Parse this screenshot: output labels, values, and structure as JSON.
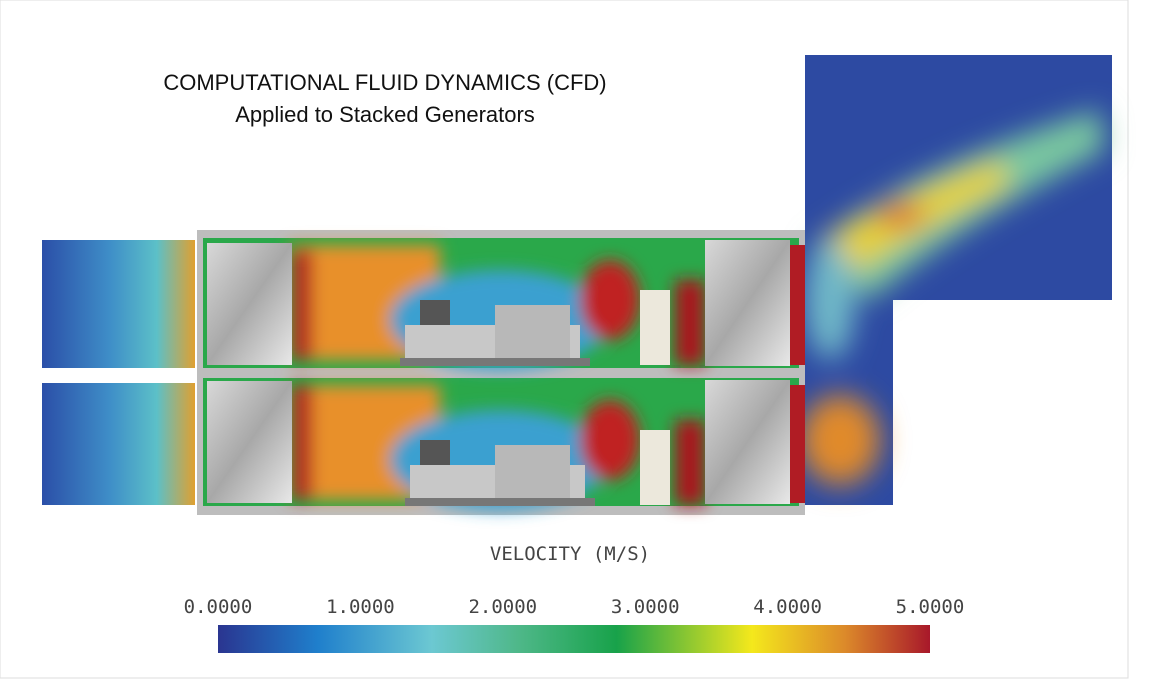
{
  "header": {
    "title": "COMPUTATIONAL FLUID DYNAMICS (CFD)",
    "subtitle": "Applied to Stacked Generators"
  },
  "colorbar": {
    "label": "VELOCITY (M/S)",
    "tick_labels": [
      "0.0000",
      "1.0000",
      "2.0000",
      "3.0000",
      "4.0000",
      "5.0000"
    ]
  }
}
